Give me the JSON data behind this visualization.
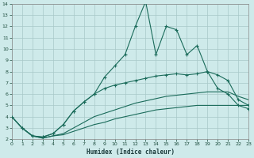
{
  "xlabel": "Humidex (Indice chaleur)",
  "bg_color": "#ceeaea",
  "grid_color": "#a8c8c8",
  "line_color": "#1a6b5a",
  "xlim": [
    0,
    23
  ],
  "ylim": [
    2,
    14
  ],
  "xticks": [
    0,
    1,
    2,
    3,
    4,
    5,
    6,
    7,
    8,
    9,
    10,
    11,
    12,
    13,
    14,
    15,
    16,
    17,
    18,
    19,
    20,
    21,
    22,
    23
  ],
  "yticks": [
    2,
    3,
    4,
    5,
    6,
    7,
    8,
    9,
    10,
    11,
    12,
    13,
    14
  ],
  "series": [
    {
      "x": [
        0,
        1,
        2,
        3,
        4,
        5,
        6,
        7,
        8,
        9,
        10,
        11,
        12,
        13,
        14,
        15,
        16,
        17,
        18,
        19,
        20,
        21,
        22,
        23
      ],
      "y": [
        4.0,
        3.0,
        2.3,
        2.1,
        2.3,
        2.4,
        2.7,
        3.0,
        3.3,
        3.5,
        3.8,
        4.0,
        4.2,
        4.4,
        4.6,
        4.7,
        4.8,
        4.9,
        5.0,
        5.0,
        5.0,
        5.0,
        5.0,
        5.0
      ],
      "marker": false,
      "lw": 0.8
    },
    {
      "x": [
        0,
        1,
        2,
        3,
        4,
        5,
        6,
        7,
        8,
        9,
        10,
        11,
        12,
        13,
        14,
        15,
        16,
        17,
        18,
        19,
        20,
        21,
        22,
        23
      ],
      "y": [
        4.0,
        3.0,
        2.3,
        2.1,
        2.3,
        2.5,
        3.0,
        3.5,
        4.0,
        4.3,
        4.6,
        4.9,
        5.2,
        5.4,
        5.6,
        5.8,
        5.9,
        6.0,
        6.1,
        6.2,
        6.2,
        6.2,
        5.8,
        5.5
      ],
      "marker": false,
      "lw": 0.8
    },
    {
      "x": [
        0,
        1,
        2,
        3,
        4,
        5,
        6,
        7,
        8,
        9,
        10,
        11,
        12,
        13,
        14,
        15,
        16,
        17,
        18,
        19,
        20,
        21,
        22,
        23
      ],
      "y": [
        4.0,
        3.0,
        2.3,
        2.2,
        2.5,
        3.3,
        4.5,
        5.3,
        6.0,
        6.5,
        6.8,
        7.0,
        7.2,
        7.4,
        7.6,
        7.7,
        7.8,
        7.7,
        7.8,
        8.0,
        7.7,
        7.2,
        5.5,
        5.0
      ],
      "marker": true,
      "lw": 0.8
    },
    {
      "x": [
        1,
        2,
        3,
        4,
        5,
        6,
        7,
        8,
        9,
        10,
        11,
        12,
        13,
        14,
        15,
        16,
        17,
        18,
        19,
        20,
        21,
        22,
        23
      ],
      "y": [
        3.0,
        2.3,
        2.2,
        2.5,
        3.3,
        4.5,
        5.3,
        6.0,
        7.5,
        8.5,
        9.5,
        12.0,
        14.2,
        9.5,
        12.0,
        11.7,
        9.5,
        10.3,
        8.0,
        6.5,
        6.0,
        5.0,
        4.7
      ],
      "marker": true,
      "lw": 0.8
    }
  ]
}
